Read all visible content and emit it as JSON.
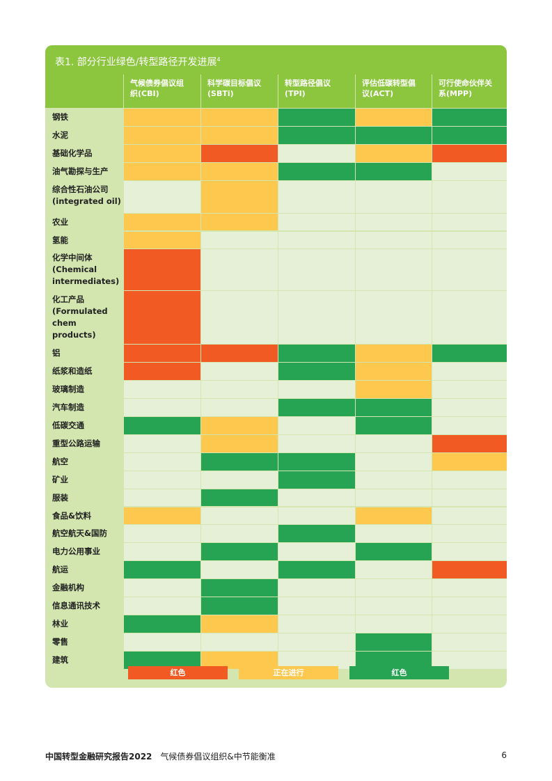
{
  "table": {
    "title": "表1. 部分行业绿色/转型路径开发进展",
    "title_footnote": "4",
    "columns": [
      {
        "line1": "气候债券倡议组",
        "line2": "织(CBI)"
      },
      {
        "line1": "科学碳目标倡议",
        "line2": "(SBTi)"
      },
      {
        "line1": "转型路径倡议",
        "line2": "(TPI)"
      },
      {
        "line1": "评估低碳转型倡",
        "line2": "议(ACT)"
      },
      {
        "line1": "可行使命伙伴关",
        "line2": "系(MPP)"
      }
    ],
    "rows": [
      {
        "label": "钢铁",
        "status": [
          "yellow",
          "yellow",
          "green",
          "yellow",
          "green"
        ]
      },
      {
        "label": "水泥",
        "status": [
          "yellow",
          "yellow",
          "green",
          "green",
          "green"
        ]
      },
      {
        "label": "基础化学品",
        "status": [
          "yellow",
          "red",
          "none",
          "yellow",
          "red"
        ]
      },
      {
        "label": "油气勘探与生产",
        "status": [
          "yellow",
          "yellow",
          "green",
          "green",
          "none"
        ]
      },
      {
        "label": "综合性石油公司\n(integrated oil)",
        "status": [
          "none",
          "yellow",
          "none",
          "none",
          "none"
        ]
      },
      {
        "label": "农业",
        "status": [
          "yellow",
          "yellow",
          "none",
          "none",
          "none"
        ]
      },
      {
        "label": "氢能",
        "status": [
          "yellow",
          "none",
          "none",
          "none",
          "none"
        ]
      },
      {
        "label": "化学中间体\n(Chemical\nintermediates)",
        "status": [
          "red",
          "none",
          "none",
          "none",
          "none"
        ]
      },
      {
        "label": "化工产品\n(Formulated\nchem\nproducts)",
        "status": [
          "red",
          "none",
          "none",
          "none",
          "none"
        ]
      },
      {
        "label": "铝",
        "status": [
          "red",
          "red",
          "green",
          "yellow",
          "green"
        ]
      },
      {
        "label": "纸浆和造纸",
        "status": [
          "red",
          "none",
          "green",
          "yellow",
          "none"
        ]
      },
      {
        "label": "玻璃制造",
        "status": [
          "none",
          "none",
          "none",
          "yellow",
          "none"
        ]
      },
      {
        "label": "汽车制造",
        "status": [
          "none",
          "none",
          "green",
          "green",
          "none"
        ]
      },
      {
        "label": "低碳交通",
        "status": [
          "green",
          "yellow",
          "none",
          "green",
          "none"
        ]
      },
      {
        "label": "重型公路运输",
        "status": [
          "none",
          "yellow",
          "none",
          "none",
          "red"
        ]
      },
      {
        "label": "航空",
        "status": [
          "none",
          "green",
          "green",
          "none",
          "yellow"
        ]
      },
      {
        "label": "矿业",
        "status": [
          "none",
          "none",
          "green",
          "none",
          "none"
        ]
      },
      {
        "label": "服装",
        "status": [
          "none",
          "green",
          "none",
          "none",
          "none"
        ]
      },
      {
        "label": "食品&饮料",
        "status": [
          "yellow",
          "none",
          "none",
          "yellow",
          "none"
        ]
      },
      {
        "label": "航空航天&国防",
        "status": [
          "none",
          "none",
          "green",
          "none",
          "none"
        ]
      },
      {
        "label": "电力公用事业",
        "status": [
          "none",
          "green",
          "none",
          "green",
          "none"
        ]
      },
      {
        "label": "航运",
        "status": [
          "green",
          "none",
          "green",
          "none",
          "red"
        ]
      },
      {
        "label": "金融机构",
        "status": [
          "none",
          "green",
          "none",
          "none",
          "none"
        ]
      },
      {
        "label": "信息通讯技术",
        "status": [
          "none",
          "green",
          "none",
          "none",
          "none"
        ]
      },
      {
        "label": "林业",
        "status": [
          "green",
          "yellow",
          "none",
          "none",
          "none"
        ]
      },
      {
        "label": "零售",
        "status": [
          "none",
          "none",
          "none",
          "green",
          "none"
        ]
      },
      {
        "label": "建筑",
        "status": [
          "green",
          "yellow",
          "none",
          "green",
          "none"
        ]
      }
    ],
    "legend": [
      {
        "key": "red",
        "label": "红色",
        "color": "#f15a22"
      },
      {
        "key": "yellow",
        "label": "正在进行",
        "color": "#fec84e"
      },
      {
        "key": "green",
        "label": "红色",
        "color": "#27a354"
      }
    ]
  },
  "colors": {
    "red": "#f15a22",
    "yellow": "#fec84e",
    "green": "#27a354",
    "none": "#e6f0d7",
    "header": "#8cc63f",
    "label_bg": "#d3e6b0"
  },
  "footer": {
    "report": "中国转型金融研究报告2022",
    "org": "气候债券倡议组织&中节能衡准",
    "page": "6"
  }
}
